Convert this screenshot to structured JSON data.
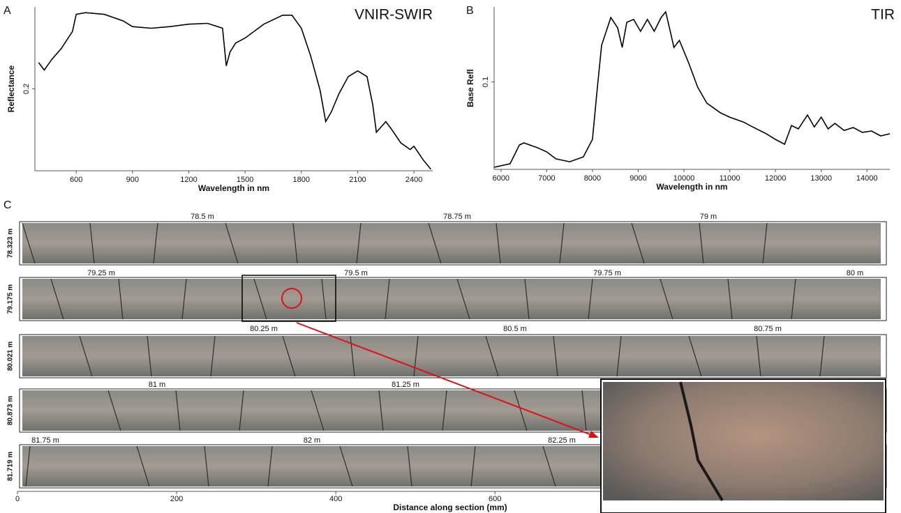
{
  "chart_data": [
    {
      "type": "line",
      "panel": "A",
      "title": "VNIR-SWIR",
      "xlabel": "Wavelength in nm",
      "ylabel": "Reflectance",
      "color": "#000000",
      "x": [
        400,
        430,
        470,
        520,
        580,
        600,
        650,
        750,
        850,
        900,
        1000,
        1100,
        1200,
        1300,
        1380,
        1400,
        1420,
        1450,
        1500,
        1600,
        1700,
        1750,
        1800,
        1850,
        1900,
        1930,
        1960,
        2000,
        2050,
        2100,
        2150,
        2180,
        2200,
        2250,
        2280,
        2330,
        2380,
        2400,
        2450,
        2490
      ],
      "values": [
        0.232,
        0.223,
        0.236,
        0.249,
        0.27,
        0.291,
        0.293,
        0.291,
        0.283,
        0.276,
        0.274,
        0.276,
        0.279,
        0.28,
        0.274,
        0.228,
        0.245,
        0.256,
        0.262,
        0.279,
        0.29,
        0.29,
        0.274,
        0.24,
        0.198,
        0.16,
        0.172,
        0.194,
        0.215,
        0.222,
        0.215,
        0.181,
        0.147,
        0.16,
        0.151,
        0.134,
        0.126,
        0.13,
        0.113,
        0.102
      ],
      "xlim": [
        380,
        2500
      ],
      "ylim": [
        0.1,
        0.3
      ],
      "xticks": [
        600,
        900,
        1200,
        1500,
        1800,
        2100,
        2400
      ],
      "yticks": [
        0.2
      ]
    },
    {
      "type": "line",
      "panel": "B",
      "title": "TIR",
      "xlabel": "Wavelength in nm",
      "ylabel": "Base Refl",
      "color": "#000000",
      "x": [
        5850,
        6200,
        6400,
        6500,
        6800,
        7000,
        7200,
        7500,
        7800,
        8000,
        8100,
        8200,
        8400,
        8550,
        8650,
        8750,
        8900,
        9050,
        9200,
        9350,
        9500,
        9600,
        9700,
        9780,
        9900,
        10100,
        10300,
        10500,
        10800,
        11000,
        11300,
        11500,
        11800,
        12000,
        12200,
        12350,
        12500,
        12700,
        12850,
        13000,
        13150,
        13300,
        13500,
        13700,
        13900,
        14100,
        14300,
        14500
      ],
      "values": [
        0.0317,
        0.0345,
        0.0495,
        0.0512,
        0.0473,
        0.044,
        0.0384,
        0.0361,
        0.04,
        0.054,
        0.093,
        0.1293,
        0.1516,
        0.1433,
        0.1276,
        0.1477,
        0.15,
        0.1405,
        0.15,
        0.1405,
        0.1516,
        0.1561,
        0.1405,
        0.1276,
        0.1332,
        0.1154,
        0.0958,
        0.083,
        0.0752,
        0.0718,
        0.0679,
        0.064,
        0.0585,
        0.054,
        0.0501,
        0.0651,
        0.0624,
        0.0735,
        0.064,
        0.0718,
        0.0624,
        0.0668,
        0.0612,
        0.0635,
        0.0596,
        0.0607,
        0.0568,
        0.0585
      ],
      "xlim": [
        5850,
        14500
      ],
      "ylim": [
        0.03,
        0.16
      ],
      "xticks": [
        6000,
        7000,
        8000,
        9000,
        10000,
        11000,
        12000,
        13000,
        14000
      ],
      "yticks": [
        0.1
      ]
    },
    {
      "type": "core",
      "panel": "C",
      "xlabel": "Distance along section (mm)",
      "xlim": [
        0,
        1090
      ],
      "xticks": [
        0,
        200,
        400,
        600
      ],
      "rows": [
        {
          "depth": "78.323 m",
          "marks": [
            "78.5 m",
            "78.75 m",
            "79 m"
          ]
        },
        {
          "depth": "79.175 m",
          "marks": [
            "79.25 m",
            "79.5 m",
            "79.75 m",
            "80 m"
          ]
        },
        {
          "depth": "80.021 m",
          "marks": [
            "80.25 m",
            "80.5 m",
            "80.75 m"
          ]
        },
        {
          "depth": "80.873 m",
          "marks": [
            "81 m",
            "81.25 m"
          ]
        },
        {
          "depth": "81.719 m",
          "marks": [
            "81.75 m",
            "82 m",
            "82.25 m"
          ]
        }
      ]
    }
  ]
}
